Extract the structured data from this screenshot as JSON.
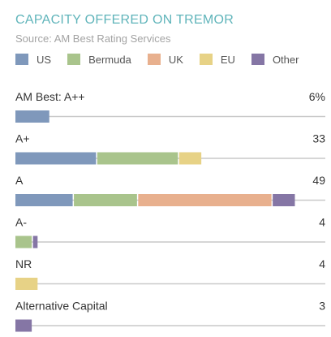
{
  "chart_data": {
    "type": "bar",
    "orientation": "horizontal",
    "stacked": true,
    "title": "CAPACITY OFFERED ON TREMOR",
    "subtitle": "Source: AM Best Rating Services",
    "legend_placement": "top",
    "grid": false,
    "categories": [
      "AM Best: A++",
      "A+",
      "A",
      "A-",
      "NR",
      "Alternative Capital"
    ],
    "value_labels": [
      "6%",
      "33",
      "49",
      "4",
      "4",
      "3"
    ],
    "xlim": [
      0,
      53
    ],
    "series": [
      {
        "name": "US",
        "color": "#7f98bb",
        "values": [
          6,
          14,
          10,
          0,
          0,
          0
        ]
      },
      {
        "name": "Bermuda",
        "color": "#a9c48c",
        "values": [
          0,
          14,
          11,
          3,
          0,
          0
        ]
      },
      {
        "name": "UK",
        "color": "#e8b08e",
        "values": [
          0,
          0,
          23,
          0,
          0,
          0
        ]
      },
      {
        "name": "EU",
        "color": "#e7d286",
        "values": [
          0,
          4,
          0,
          0,
          4,
          0
        ]
      },
      {
        "name": "Other",
        "color": "#8576a5",
        "values": [
          0,
          0,
          4,
          1,
          0,
          3
        ]
      }
    ]
  }
}
